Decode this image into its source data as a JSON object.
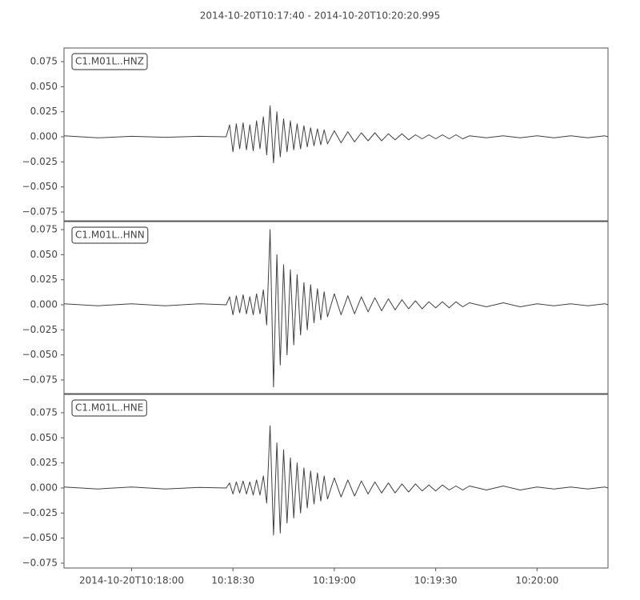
{
  "chart_data": {
    "type": "line",
    "title": "2014-10-20T10:17:40  -  2014-10-20T10:20:20.995",
    "x": [
      "10:17:40",
      "10:17:50",
      "10:18:00",
      "10:18:10",
      "10:18:20",
      "10:18:28",
      "10:18:29",
      "10:18:30",
      "10:18:31",
      "10:18:32",
      "10:18:33",
      "10:18:34",
      "10:18:35",
      "10:18:36",
      "10:18:37",
      "10:18:38",
      "10:18:39",
      "10:18:40",
      "10:18:41",
      "10:18:42",
      "10:18:43",
      "10:18:44",
      "10:18:45",
      "10:18:46",
      "10:18:47",
      "10:18:48",
      "10:18:49",
      "10:18:50",
      "10:18:51",
      "10:18:52",
      "10:18:53",
      "10:18:54",
      "10:18:55",
      "10:18:56",
      "10:18:57",
      "10:18:58",
      "10:19:00",
      "10:19:02",
      "10:19:04",
      "10:19:06",
      "10:19:08",
      "10:19:10",
      "10:19:12",
      "10:19:14",
      "10:19:16",
      "10:19:18",
      "10:19:20",
      "10:19:22",
      "10:19:24",
      "10:19:26",
      "10:19:28",
      "10:19:30",
      "10:19:32",
      "10:19:34",
      "10:19:36",
      "10:19:38",
      "10:19:40",
      "10:19:45",
      "10:19:50",
      "10:19:55",
      "10:20:00",
      "10:20:05",
      "10:20:10",
      "10:20:15",
      "10:20:20",
      "10:20:21"
    ],
    "xlim": [
      "10:17:40",
      "10:20:21"
    ],
    "xticks": [
      {
        "value": "10:18:00",
        "label": "2014-10-20T10:18:00"
      },
      "10:18:30",
      "10:19:00",
      "10:19:30",
      "10:20:00"
    ],
    "yticks": [
      {
        "value": 0.075,
        "label": "0.075"
      },
      {
        "value": 0.05,
        "label": "0.050"
      },
      {
        "value": 0.025,
        "label": "0.025"
      },
      {
        "value": 0,
        "label": "0.000"
      },
      {
        "value": -0.025,
        "label": "−0.025"
      },
      {
        "value": -0.05,
        "label": "−0.050"
      },
      {
        "value": -0.075,
        "label": "−0.075"
      }
    ],
    "series": [
      {
        "name": "C1.M01L..HNZ",
        "color": "#404040",
        "ylim": [
          -0.0838,
          0.0886
        ],
        "values": [
          0.001,
          -0.001,
          0.0005,
          -0.0005,
          0.0005,
          0,
          0.012,
          -0.015,
          0.013,
          -0.012,
          0.014,
          -0.013,
          0.012,
          -0.014,
          0.016,
          -0.012,
          0.02,
          -0.018,
          0.031,
          -0.026,
          0.025,
          -0.02,
          0.018,
          -0.015,
          0.016,
          -0.013,
          0.013,
          -0.012,
          0.011,
          -0.01,
          0.009,
          -0.009,
          0.008,
          -0.008,
          0.007,
          -0.007,
          0.006,
          -0.006,
          0.005,
          -0.005,
          0.004,
          -0.004,
          0.004,
          -0.004,
          0.003,
          -0.003,
          0.003,
          -0.003,
          0.002,
          -0.002,
          0.002,
          -0.002,
          0.002,
          -0.002,
          0.002,
          -0.002,
          0.001,
          -0.001,
          0.001,
          -0.001,
          0.001,
          -0.001,
          0.001,
          -0.001,
          0.001,
          0
        ]
      },
      {
        "name": "C1.M01L..HNN",
        "color": "#404040",
        "ylim": [
          -0.0886,
          0.083
        ],
        "values": [
          0.001,
          -0.001,
          0.001,
          -0.001,
          0.001,
          0,
          0.008,
          -0.01,
          0.009,
          -0.008,
          0.01,
          -0.009,
          0.008,
          -0.01,
          0.011,
          -0.009,
          0.015,
          -0.02,
          0.075,
          -0.082,
          0.05,
          -0.06,
          0.04,
          -0.05,
          0.035,
          -0.04,
          0.03,
          -0.03,
          0.022,
          -0.025,
          0.02,
          -0.018,
          0.016,
          -0.015,
          0.013,
          -0.012,
          0.011,
          -0.01,
          0.009,
          -0.009,
          0.008,
          -0.007,
          0.007,
          -0.006,
          0.006,
          -0.005,
          0.005,
          -0.004,
          0.004,
          -0.004,
          0.003,
          -0.003,
          0.003,
          -0.003,
          0.003,
          -0.002,
          0.002,
          -0.002,
          0.002,
          -0.002,
          0.001,
          -0.001,
          0.001,
          -0.001,
          0.001,
          0
        ]
      },
      {
        "name": "C1.M01L..HNE",
        "color": "#404040",
        "ylim": [
          -0.0798,
          0.0933
        ],
        "values": [
          0.001,
          -0.001,
          0.001,
          -0.001,
          0.0005,
          0,
          0.005,
          -0.006,
          0.006,
          -0.005,
          0.007,
          -0.006,
          0.006,
          -0.007,
          0.008,
          -0.007,
          0.012,
          -0.015,
          0.062,
          -0.047,
          0.045,
          -0.045,
          0.038,
          -0.035,
          0.03,
          -0.03,
          0.025,
          -0.025,
          0.02,
          -0.02,
          0.017,
          -0.016,
          0.015,
          -0.013,
          0.012,
          -0.011,
          0.01,
          -0.009,
          0.008,
          -0.008,
          0.007,
          -0.006,
          0.006,
          -0.005,
          0.005,
          -0.005,
          0.004,
          -0.004,
          0.004,
          -0.003,
          0.003,
          -0.003,
          0.003,
          -0.002,
          0.002,
          -0.002,
          0.002,
          -0.002,
          0.002,
          -0.002,
          0.001,
          -0.001,
          0.001,
          -0.001,
          0.001,
          0
        ]
      }
    ]
  }
}
